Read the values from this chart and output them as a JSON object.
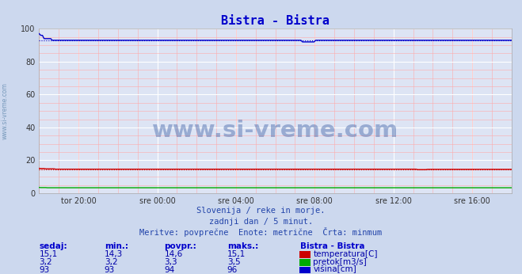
{
  "title": "Bistra - Bistra",
  "title_color": "#0000cc",
  "bg_color": "#ccd8ee",
  "plot_bg_color": "#dde4f4",
  "grid_color_major": "#ffffff",
  "grid_color_minor": "#ffaaaa",
  "ylim": [
    0,
    100
  ],
  "yticks": [
    0,
    20,
    40,
    60,
    80,
    100
  ],
  "xtick_labels": [
    "tor 20:00",
    "sre 00:00",
    "sre 04:00",
    "sre 08:00",
    "sre 12:00",
    "sre 16:00"
  ],
  "xtick_positions": [
    0.083,
    0.25,
    0.417,
    0.583,
    0.75,
    0.917
  ],
  "n_points": 288,
  "temp_value": 14.6,
  "temp_min": 14.3,
  "temp_max": 15.1,
  "pretok_value": 3.3,
  "pretok_min": 3.2,
  "pretok_max": 3.5,
  "visina_value": 94,
  "visina_min": 93,
  "visina_max": 96,
  "temp_color": "#cc0000",
  "pretok_color": "#00aa00",
  "visina_color": "#0000cc",
  "watermark_text": "www.si-vreme.com",
  "watermark_color": "#4466aa",
  "subtitle1": "Slovenija / reke in morje.",
  "subtitle2": "zadnji dan / 5 minut.",
  "subtitle3": "Meritve: povprečne  Enote: metrične  Črta: minmum",
  "subtitle_color": "#2244aa",
  "legend_title": "Bistra - Bistra",
  "legend_color": "#0000cc",
  "table_header_color": "#0000cc",
  "table_value_color": "#0000aa",
  "left_label_text": "www.si-vreme.com",
  "left_label_color": "#7799bb",
  "sedaj": [
    "15,1",
    "3,2",
    "93"
  ],
  "min_vals": [
    "14,3",
    "3,2",
    "93"
  ],
  "povpr_vals": [
    "14,6",
    "3,3",
    "94"
  ],
  "maks_vals": [
    "15,1",
    "3,5",
    "96"
  ],
  "series_labels": [
    "temperatura[C]",
    "pretok[m3/s]",
    "višina[cm]"
  ],
  "series_colors": [
    "#cc0000",
    "#00aa00",
    "#0000cc"
  ]
}
